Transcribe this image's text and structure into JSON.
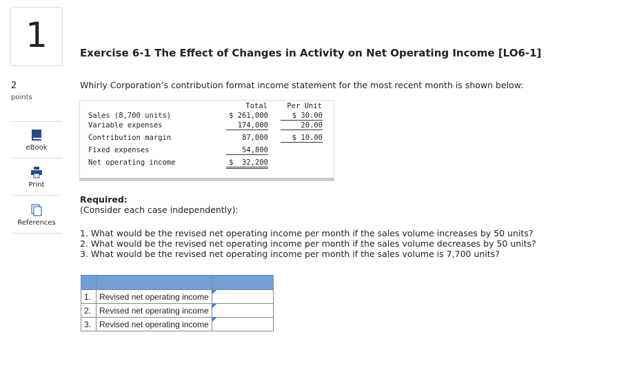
{
  "question_number": "1",
  "points": {
    "value": "2",
    "label": "points"
  },
  "sidebar": [
    "eBook",
    "Print",
    "References"
  ],
  "title": "Exercise 6-1 The Effect of Changes in Activity on Net Operating Income [LO6-1]",
  "intro": "Whirly Corporation’s contribution format income statement for the most recent month is shown below:",
  "income_statement": {
    "header": [
      "Total",
      "Per Unit"
    ],
    "rows": [
      [
        "Sales (8,700 units)",
        "$ 261,000",
        "$ 30.00"
      ],
      [
        "Variable expenses",
        "174,000",
        "20.00"
      ],
      [
        "Contribution margin",
        "87,000",
        "$ 10.00"
      ],
      [
        "Fixed expenses",
        "54,800",
        null
      ],
      [
        "Net operating income",
        "$  32,200",
        null
      ]
    ]
  },
  "required": "Required:",
  "note": "(Consider each case independently):",
  "questions": [
    "1. What would be the revised net operating income per month if the sales volume increases by 50 units?",
    "2. What would be the revised net operating income per month if the sales volume decreases by 50 units?",
    "3. What would be the revised net operating income per month if the sales volume is 7,700 units?"
  ],
  "answer_table": {
    "rows": [
      [
        "1.",
        "Revised net operating income"
      ],
      [
        "2.",
        "Revised net operating income"
      ],
      [
        "3.",
        "Revised net operating income"
      ]
    ]
  }
}
